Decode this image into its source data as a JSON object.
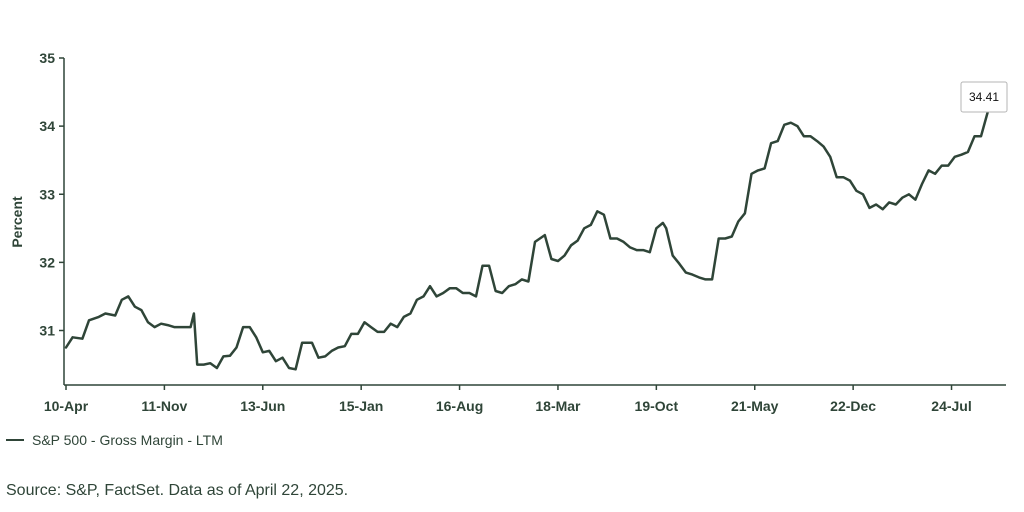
{
  "chart_data": {
    "type": "line",
    "ylabel": "Percent",
    "ylim": [
      30.2,
      35
    ],
    "yticks": [
      "35",
      "34",
      "33",
      "32",
      "31"
    ],
    "ytick_values": [
      35,
      34,
      33,
      32,
      31
    ],
    "xtick_labels": [
      "10-Apr",
      "11-Nov",
      "13-Jun",
      "15-Jan",
      "16-Aug",
      "18-Mar",
      "19-Oct",
      "21-May",
      "22-Dec",
      "24-Jul"
    ],
    "x_domain_points": 287,
    "xtick_indices": [
      0,
      30,
      60,
      90,
      120,
      150,
      180,
      210,
      240,
      270
    ],
    "legend": "bottom-left",
    "line_color": "#2f4538",
    "series": [
      {
        "name": "S&P 500 - Gross Margin - LTM",
        "points": [
          [
            0,
            30.75
          ],
          [
            2,
            30.9
          ],
          [
            5,
            30.88
          ],
          [
            7,
            31.15
          ],
          [
            10,
            31.2
          ],
          [
            12,
            31.25
          ],
          [
            15,
            31.22
          ],
          [
            17,
            31.45
          ],
          [
            19,
            31.5
          ],
          [
            21,
            31.35
          ],
          [
            23,
            31.3
          ],
          [
            25,
            31.12
          ],
          [
            27,
            31.05
          ],
          [
            29,
            31.1
          ],
          [
            31,
            31.08
          ],
          [
            33,
            31.05
          ],
          [
            35,
            31.05
          ],
          [
            38,
            31.05
          ],
          [
            39,
            31.25
          ],
          [
            40,
            30.5
          ],
          [
            42,
            30.5
          ],
          [
            44,
            30.52
          ],
          [
            46,
            30.45
          ],
          [
            48,
            30.62
          ],
          [
            50,
            30.63
          ],
          [
            52,
            30.75
          ],
          [
            54,
            31.05
          ],
          [
            56,
            31.05
          ],
          [
            58,
            30.9
          ],
          [
            60,
            30.68
          ],
          [
            62,
            30.7
          ],
          [
            64,
            30.55
          ],
          [
            66,
            30.6
          ],
          [
            68,
            30.45
          ],
          [
            70,
            30.43
          ],
          [
            72,
            30.82
          ],
          [
            75,
            30.82
          ],
          [
            77,
            30.6
          ],
          [
            79,
            30.62
          ],
          [
            81,
            30.7
          ],
          [
            83,
            30.75
          ],
          [
            85,
            30.77
          ],
          [
            87,
            30.95
          ],
          [
            89,
            30.95
          ],
          [
            91,
            31.12
          ],
          [
            93,
            31.05
          ],
          [
            95,
            30.98
          ],
          [
            97,
            30.98
          ],
          [
            99,
            31.1
          ],
          [
            101,
            31.05
          ],
          [
            103,
            31.2
          ],
          [
            105,
            31.25
          ],
          [
            107,
            31.45
          ],
          [
            109,
            31.5
          ],
          [
            111,
            31.65
          ],
          [
            113,
            31.5
          ],
          [
            115,
            31.55
          ],
          [
            117,
            31.62
          ],
          [
            119,
            31.62
          ],
          [
            121,
            31.55
          ],
          [
            123,
            31.55
          ],
          [
            125,
            31.5
          ],
          [
            127,
            31.95
          ],
          [
            129,
            31.95
          ],
          [
            131,
            31.58
          ],
          [
            133,
            31.55
          ],
          [
            135,
            31.65
          ],
          [
            137,
            31.68
          ],
          [
            139,
            31.75
          ],
          [
            141,
            31.72
          ],
          [
            143,
            32.3
          ],
          [
            146,
            32.4
          ],
          [
            148,
            32.05
          ],
          [
            150,
            32.02
          ],
          [
            152,
            32.1
          ],
          [
            154,
            32.25
          ],
          [
            156,
            32.32
          ],
          [
            158,
            32.5
          ],
          [
            160,
            32.55
          ],
          [
            162,
            32.75
          ],
          [
            164,
            32.7
          ],
          [
            166,
            32.35
          ],
          [
            168,
            32.35
          ],
          [
            170,
            32.3
          ],
          [
            172,
            32.22
          ],
          [
            174,
            32.18
          ],
          [
            176,
            32.18
          ],
          [
            178,
            32.15
          ],
          [
            180,
            32.5
          ],
          [
            182,
            32.58
          ],
          [
            183,
            32.5
          ],
          [
            185,
            32.1
          ],
          [
            187,
            31.98
          ],
          [
            189,
            31.85
          ],
          [
            191,
            31.82
          ],
          [
            193,
            31.78
          ],
          [
            195,
            31.75
          ],
          [
            197,
            31.75
          ],
          [
            199,
            32.35
          ],
          [
            201,
            32.35
          ],
          [
            203,
            32.38
          ],
          [
            205,
            32.6
          ],
          [
            207,
            32.72
          ],
          [
            209,
            33.3
          ],
          [
            211,
            33.35
          ],
          [
            213,
            33.38
          ],
          [
            215,
            33.75
          ],
          [
            217,
            33.78
          ],
          [
            219,
            34.02
          ],
          [
            221,
            34.05
          ],
          [
            223,
            34.0
          ],
          [
            225,
            33.85
          ],
          [
            227,
            33.85
          ],
          [
            229,
            33.78
          ],
          [
            231,
            33.7
          ],
          [
            233,
            33.55
          ],
          [
            235,
            33.25
          ],
          [
            237,
            33.25
          ],
          [
            239,
            33.2
          ],
          [
            241,
            33.05
          ],
          [
            243,
            33.0
          ],
          [
            245,
            32.8
          ],
          [
            247,
            32.85
          ],
          [
            249,
            32.78
          ],
          [
            251,
            32.88
          ],
          [
            253,
            32.85
          ],
          [
            255,
            32.95
          ],
          [
            257,
            33.0
          ],
          [
            259,
            32.92
          ],
          [
            261,
            33.15
          ],
          [
            263,
            33.35
          ],
          [
            265,
            33.3
          ],
          [
            267,
            33.42
          ],
          [
            269,
            33.42
          ],
          [
            271,
            33.55
          ],
          [
            273,
            33.58
          ],
          [
            275,
            33.62
          ],
          [
            277,
            33.85
          ],
          [
            279,
            33.85
          ],
          [
            281,
            34.2
          ],
          [
            282,
            34.41
          ]
        ]
      }
    ],
    "last_value_label": "34.41"
  },
  "legend_label": "S&P 500 - Gross Margin - LTM",
  "source_note": "Source: S&P, FactSet. Data as of April 22, 2025."
}
